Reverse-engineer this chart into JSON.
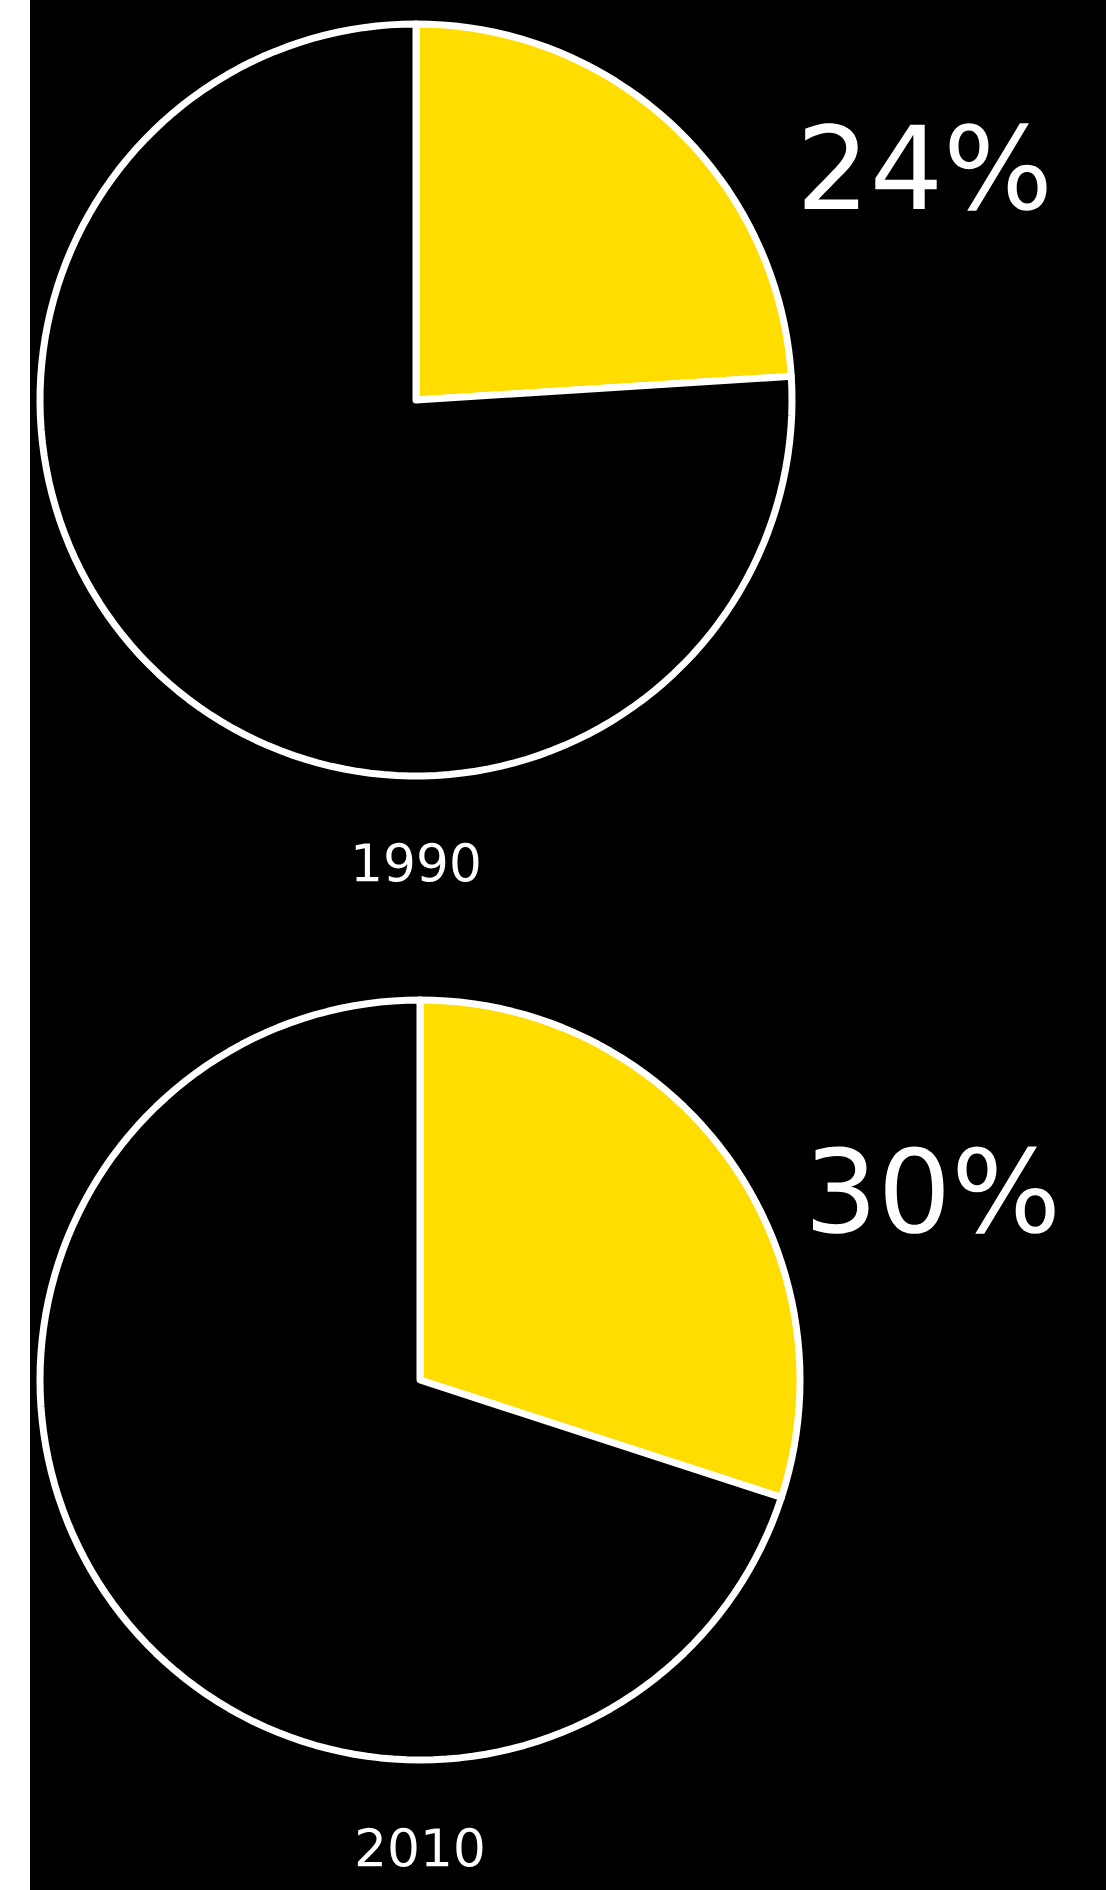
{
  "chart_data": [
    {
      "type": "pie",
      "title": "1990",
      "categories": [
        null,
        null
      ],
      "values": [
        24,
        76
      ],
      "colors": [
        "#ffdd00",
        "#000000"
      ],
      "value_labels": [
        "24%",
        null
      ]
    },
    {
      "type": "pie",
      "title": "2010",
      "categories": [
        null,
        null
      ],
      "values": [
        30,
        70
      ],
      "colors": [
        "#ffdd00",
        "#000000"
      ],
      "value_labels": [
        "30%",
        null
      ]
    }
  ]
}
